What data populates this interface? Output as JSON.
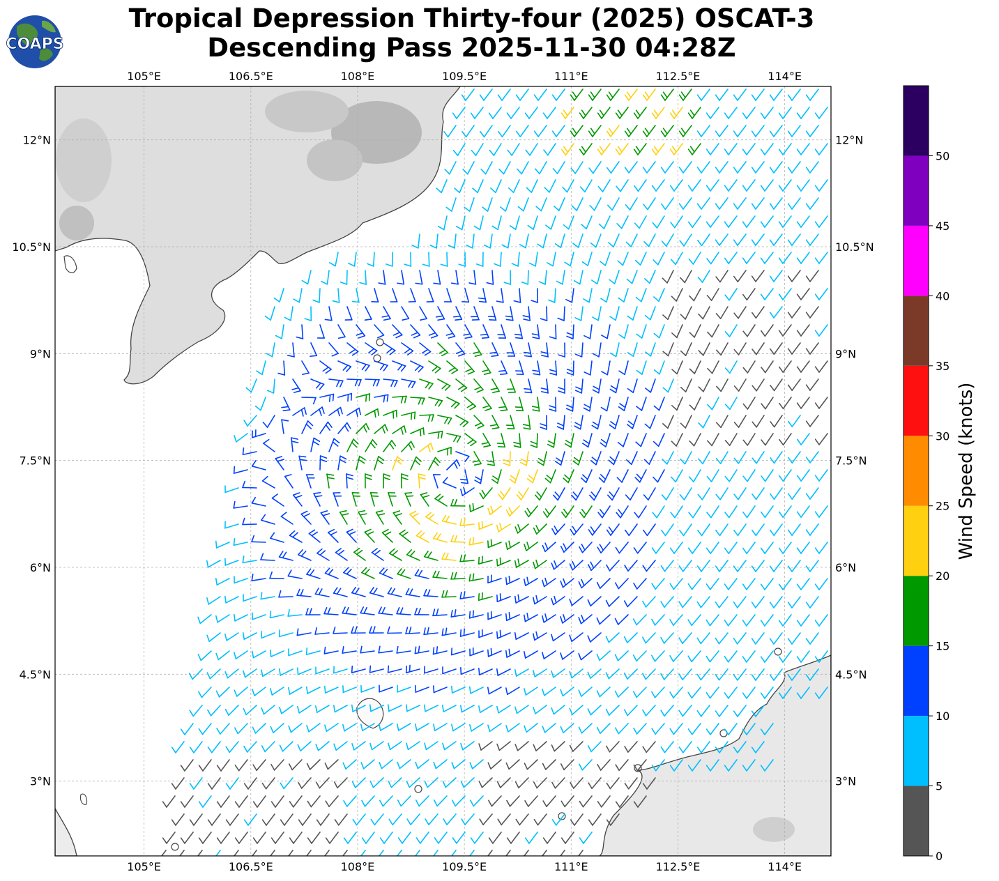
{
  "title": {
    "line1": "Tropical Depression Thirty-four (2025) OSCAT-3",
    "line2": "Descending Pass 2025-11-30 04:28Z"
  },
  "logo": {
    "text": "COAPS",
    "icon": "coaps-globe-logo"
  },
  "map": {
    "lon_range": [
      103.75,
      114.65
    ],
    "lat_range": [
      1.95,
      12.75
    ],
    "lon_ticks": [
      "105°E",
      "106.5°E",
      "108°E",
      "109.5°E",
      "111°E",
      "112.5°E",
      "114°E"
    ],
    "lat_ticks": [
      "12°N",
      "10.5°N",
      "9°N",
      "7.5°N",
      "6°N",
      "4.5°N",
      "3°N"
    ],
    "grid": true,
    "storm_center": {
      "lon": 109.4,
      "lat": 7.3
    }
  },
  "colorbar": {
    "label": "Wind Speed (knots)",
    "ticks": [
      "0",
      "5",
      "10",
      "15",
      "20",
      "25",
      "30",
      "35",
      "40",
      "45",
      "50"
    ],
    "colors": [
      "#555555",
      "#00bfff",
      "#0040ff",
      "#009900",
      "#ffd010",
      "#ff8c00",
      "#ff1010",
      "#7b3a28",
      "#ff00ff",
      "#8000c0",
      "#2b0060"
    ]
  },
  "land_color": "#d8d8d8",
  "coast_color": "#444444"
}
